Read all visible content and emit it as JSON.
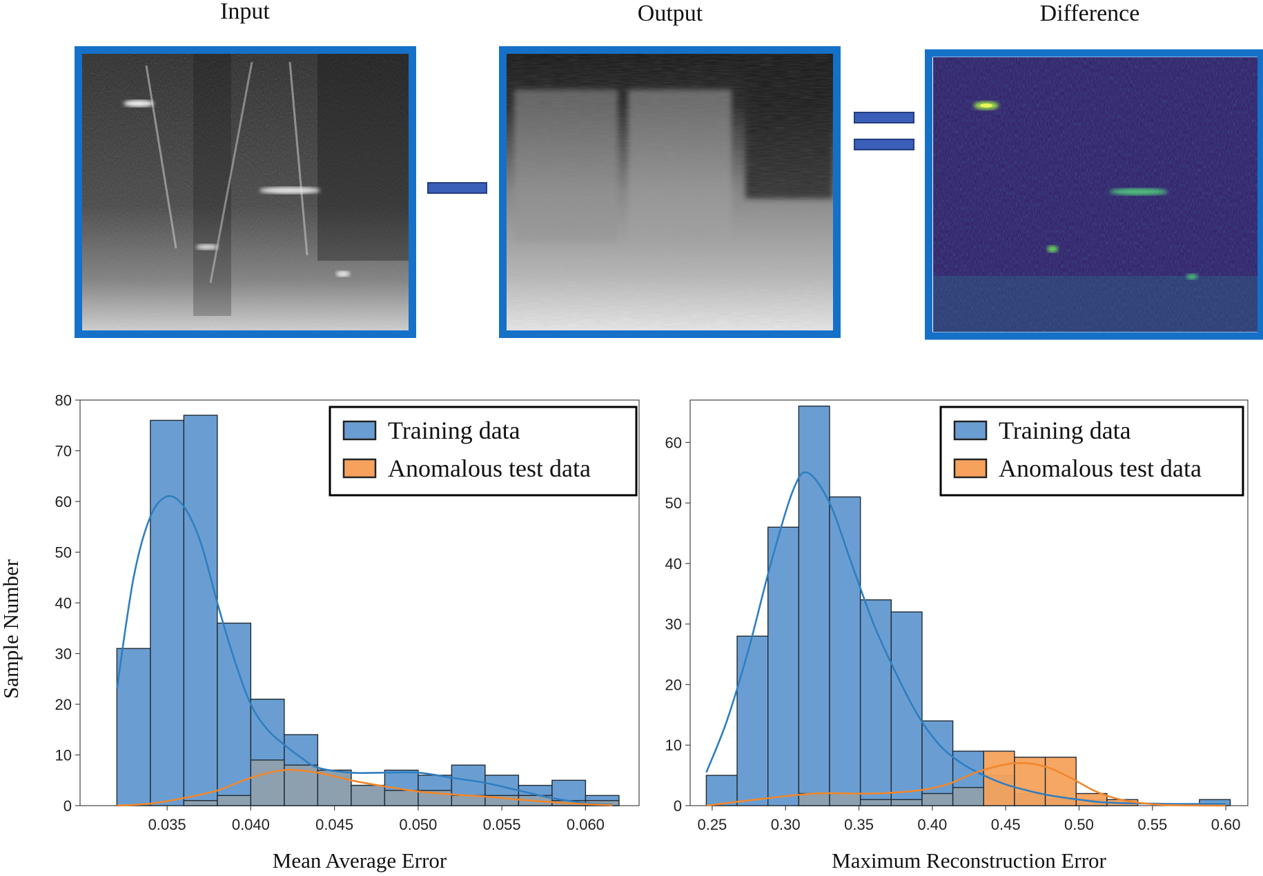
{
  "panels": {
    "input_title": "Input",
    "output_title": "Output",
    "difference_title": "Difference",
    "frame_color": "#1570c8",
    "operator_color": "#3a5fb8"
  },
  "shared_ylabel": "Sample Number",
  "colors": {
    "training": "#6a9ed2",
    "training_line": "#2f7ec0",
    "anomalous": "#f6a25c",
    "anomalous_line": "#f0872d",
    "overlap": "#8fa0ad"
  },
  "chart_data": [
    {
      "type": "bar",
      "xlabel": "Mean Average Error",
      "ylabel": "Sample Number",
      "xlim": [
        0.0298,
        0.0632
      ],
      "ylim": [
        0,
        80
      ],
      "xticks": [
        "0.035",
        "0.040",
        "0.045",
        "0.050",
        "0.055",
        "0.060"
      ],
      "yticks": [
        "0",
        "10",
        "20",
        "30",
        "40",
        "50",
        "60",
        "70",
        "80"
      ],
      "legend": {
        "position": "top-right",
        "entries": [
          "Training data",
          "Anomalous test data"
        ]
      },
      "bin_edges": [
        0.032,
        0.034,
        0.036,
        0.038,
        0.04,
        0.042,
        0.044,
        0.046,
        0.048,
        0.05,
        0.052,
        0.054,
        0.056,
        0.058,
        0.06,
        0.062
      ],
      "series": [
        {
          "name": "Training data",
          "values": [
            31,
            76,
            77,
            36,
            21,
            14,
            7,
            4,
            7,
            6,
            8,
            6,
            4,
            5,
            2,
            1
          ]
        },
        {
          "name": "Anomalous test data",
          "values": [
            0,
            0,
            1,
            2,
            9,
            8,
            7,
            4,
            3,
            3,
            2,
            2,
            2,
            1,
            1,
            0
          ]
        }
      ],
      "kde": [
        {
          "series": "Training data",
          "points": [
            [
              0.032,
              23
            ],
            [
              0.033,
              45
            ],
            [
              0.034,
              57
            ],
            [
              0.035,
              61
            ],
            [
              0.036,
              59
            ],
            [
              0.037,
              52
            ],
            [
              0.038,
              40
            ],
            [
              0.039,
              29
            ],
            [
              0.04,
              20
            ],
            [
              0.041,
              15
            ],
            [
              0.042,
              12
            ],
            [
              0.043,
              9.5
            ],
            [
              0.044,
              7.5
            ],
            [
              0.046,
              6.5
            ],
            [
              0.048,
              6.5
            ],
            [
              0.05,
              6.5
            ],
            [
              0.052,
              5.5
            ],
            [
              0.054,
              4.5
            ],
            [
              0.056,
              3
            ],
            [
              0.058,
              1.5
            ],
            [
              0.06,
              0.5
            ],
            [
              0.0616,
              0.2
            ]
          ]
        },
        {
          "series": "Anomalous test data",
          "points": [
            [
              0.032,
              0
            ],
            [
              0.034,
              0.4
            ],
            [
              0.036,
              1.5
            ],
            [
              0.038,
              3
            ],
            [
              0.04,
              5.5
            ],
            [
              0.042,
              7
            ],
            [
              0.044,
              6.5
            ],
            [
              0.046,
              5
            ],
            [
              0.048,
              3.8
            ],
            [
              0.05,
              2.8
            ],
            [
              0.052,
              2.2
            ],
            [
              0.054,
              1.8
            ],
            [
              0.056,
              1.2
            ],
            [
              0.058,
              0.7
            ],
            [
              0.06,
              0.3
            ],
            [
              0.0616,
              0.1
            ]
          ]
        }
      ]
    },
    {
      "type": "bar",
      "xlabel": "Maximum Reconstruction Error",
      "ylabel": "",
      "xlim": [
        0.235,
        0.615
      ],
      "ylim": [
        0,
        67
      ],
      "xticks": [
        "0.25",
        "0.30",
        "0.35",
        "0.40",
        "0.45",
        "0.50",
        "0.55",
        "0.60"
      ],
      "yticks": [
        "0",
        "10",
        "20",
        "30",
        "40",
        "50",
        "60"
      ],
      "legend": {
        "position": "top-right",
        "entries": [
          "Training data",
          "Anomalous test data"
        ]
      },
      "bin_edges": [
        0.246,
        0.267,
        0.288,
        0.309,
        0.33,
        0.351,
        0.372,
        0.393,
        0.414,
        0.435,
        0.456,
        0.477,
        0.498,
        0.519,
        0.54,
        0.561,
        0.582,
        0.603
      ],
      "series": [
        {
          "name": "Training data",
          "values": [
            5,
            28,
            46,
            66,
            51,
            34,
            32,
            14,
            9,
            5,
            2,
            1,
            1,
            0,
            0,
            0,
            1
          ]
        },
        {
          "name": "Anomalous test data",
          "values": [
            0,
            0,
            0,
            2,
            2,
            1,
            1,
            2,
            3,
            9,
            8,
            8,
            2,
            1,
            0,
            0,
            0
          ]
        }
      ],
      "kde": [
        {
          "series": "Training data",
          "points": [
            [
              0.246,
              5.5
            ],
            [
              0.26,
              14
            ],
            [
              0.275,
              26
            ],
            [
              0.29,
              40
            ],
            [
              0.305,
              52
            ],
            [
              0.315,
              55
            ],
            [
              0.33,
              50
            ],
            [
              0.345,
              40
            ],
            [
              0.36,
              30
            ],
            [
              0.375,
              22
            ],
            [
              0.39,
              15
            ],
            [
              0.405,
              10
            ],
            [
              0.42,
              7
            ],
            [
              0.435,
              5
            ],
            [
              0.45,
              3.5
            ],
            [
              0.465,
              2.5
            ],
            [
              0.48,
              1.7
            ],
            [
              0.5,
              1
            ],
            [
              0.52,
              0.5
            ],
            [
              0.56,
              0.3
            ],
            [
              0.6,
              0.3
            ]
          ]
        },
        {
          "series": "Anomalous test data",
          "points": [
            [
              0.246,
              0
            ],
            [
              0.28,
              1
            ],
            [
              0.32,
              2
            ],
            [
              0.36,
              2
            ],
            [
              0.39,
              2.5
            ],
            [
              0.41,
              3.5
            ],
            [
              0.43,
              5.5
            ],
            [
              0.45,
              6.8
            ],
            [
              0.465,
              7
            ],
            [
              0.48,
              6.2
            ],
            [
              0.495,
              4.5
            ],
            [
              0.51,
              2.5
            ],
            [
              0.525,
              1.2
            ],
            [
              0.54,
              0.5
            ],
            [
              0.56,
              0.1
            ],
            [
              0.6,
              0
            ]
          ]
        }
      ]
    }
  ]
}
